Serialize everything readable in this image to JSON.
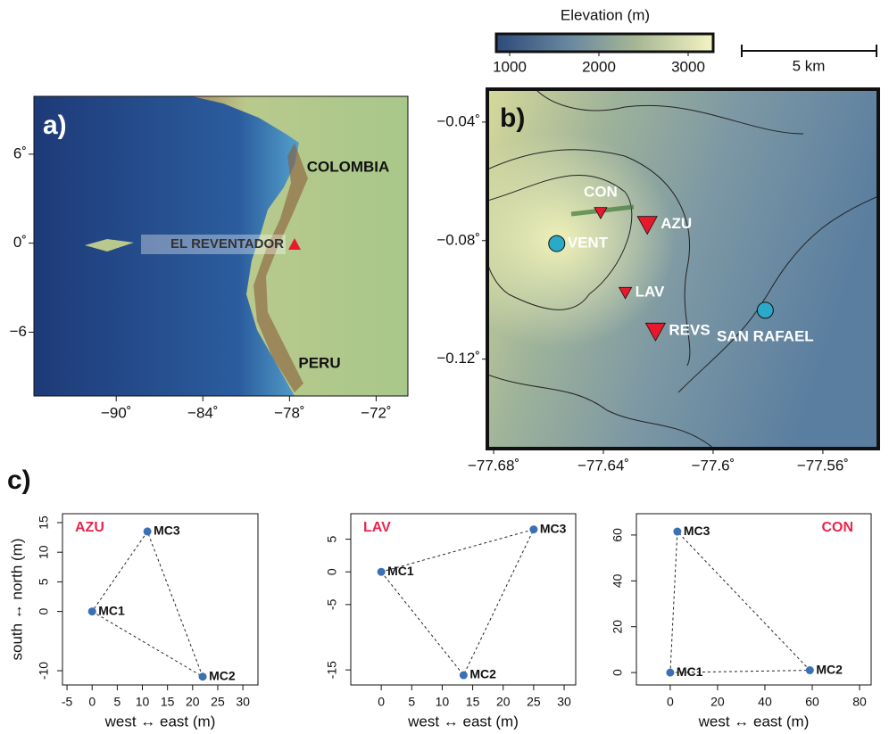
{
  "panels": {
    "a": "a)",
    "b": "b)",
    "c": "c)"
  },
  "maps": {
    "a": {
      "xlim": [
        -95.7,
        -69.8
      ],
      "ylim": [
        -10.3,
        9.9
      ],
      "xticks": [
        {
          "value": -90,
          "label": "−90˚"
        },
        {
          "value": -84,
          "label": "−84˚"
        },
        {
          "value": -78,
          "label": "−78˚"
        },
        {
          "value": -72,
          "label": "−72˚"
        }
      ],
      "yticks": [
        {
          "value": 6,
          "label": "6˚"
        },
        {
          "value": 0,
          "label": "0˚"
        },
        {
          "value": -6,
          "label": "−6"
        }
      ],
      "labels": [
        "COLOMBIA",
        "PERU"
      ],
      "volcano": {
        "name": "EL REVENTADOR",
        "lon": -77.65,
        "lat": -0.08,
        "color": "#e8192c"
      }
    },
    "b": {
      "xlim": [
        -77.6823,
        -77.5398
      ],
      "ylim": [
        -0.1502,
        -0.0289
      ],
      "xticks": [
        {
          "value": -77.68,
          "label": "−77.68˚"
        },
        {
          "value": -77.64,
          "label": "−77.64˚"
        },
        {
          "value": -77.6,
          "label": "−77.6˚"
        },
        {
          "value": -77.56,
          "label": "−77.56˚"
        }
      ],
      "yticks": [
        {
          "value": -0.04,
          "label": "−0.04˚"
        },
        {
          "value": -0.08,
          "label": "−0.08˚"
        },
        {
          "value": -0.12,
          "label": "−0.12˚"
        }
      ],
      "stations": [
        {
          "name": "VENT",
          "lon": -77.657,
          "lat": -0.081,
          "marker": "circle",
          "color": "#2aa9c9"
        },
        {
          "name": "CON",
          "lon": -77.641,
          "lat": -0.0705,
          "marker": "small-triangle",
          "color": "#e8192c"
        },
        {
          "name": "AZU",
          "lon": -77.624,
          "lat": -0.0745,
          "marker": "triangle",
          "color": "#e8192c"
        },
        {
          "name": "LAV",
          "lon": -77.632,
          "lat": -0.0975,
          "marker": "small-triangle",
          "color": "#e8192c"
        },
        {
          "name": "REVS",
          "lon": -77.621,
          "lat": -0.1105,
          "marker": "triangle",
          "color": "#e8192c"
        },
        {
          "name": "SAN RAFAEL",
          "lon": -77.581,
          "lat": -0.1035,
          "marker": "circle",
          "color": "#2aa9c9"
        }
      ]
    },
    "colorbar": {
      "label": "Elevation (m)",
      "lim": [
        850,
        3280
      ],
      "ticks": [
        1000,
        2000,
        3000
      ]
    },
    "scale_bar": {
      "label": "5 km"
    }
  },
  "chart_data": [
    {
      "type": "scatter",
      "title": "AZU",
      "title_corner": "top-left",
      "title_color": "#e8274f",
      "color": "#3b6fb6",
      "point_labels": [
        "MC1",
        "MC2",
        "MC3"
      ],
      "x": [
        0,
        22,
        11
      ],
      "values": [
        0,
        -11,
        13.5
      ],
      "xlim": [
        -5.9,
        33
      ],
      "ylim": [
        -12.4,
        16.5
      ],
      "xticks": [
        -5,
        0,
        5,
        10,
        15,
        20,
        25,
        30
      ],
      "yticks": [
        -10,
        0,
        5,
        10,
        15
      ],
      "xlabel": "west ↔ east (m)",
      "ylabel": "south ↔ north (m)"
    },
    {
      "type": "scatter",
      "title": "LAV",
      "title_corner": "top-left",
      "title_color": "#e8274f",
      "color": "#3b6fb6",
      "point_labels": [
        "MC1",
        "MC2",
        "MC3"
      ],
      "x": [
        0,
        13.5,
        25
      ],
      "values": [
        0,
        -15.8,
        6.5
      ],
      "xlim": [
        -5,
        31.9
      ],
      "ylim": [
        -17.3,
        8.9
      ],
      "xticks": [
        0,
        5,
        10,
        15,
        20,
        25,
        30
      ],
      "yticks": [
        -15,
        -5,
        0,
        5
      ],
      "xlabel": "west ↔ east (m)"
    },
    {
      "type": "scatter",
      "title": "CON",
      "title_corner": "top-right",
      "title_color": "#e8274f",
      "color": "#3b6fb6",
      "point_labels": [
        "MC1",
        "MC2",
        "MC3"
      ],
      "x": [
        0,
        59,
        3
      ],
      "values": [
        0,
        1,
        61.5
      ],
      "xlim": [
        -14.3,
        84.9
      ],
      "ylim": [
        -5.4,
        69.3
      ],
      "xticks": [
        0,
        20,
        40,
        60,
        80
      ],
      "yticks": [
        0,
        20,
        40,
        60
      ],
      "xlabel": "west ↔ east (m)"
    }
  ]
}
